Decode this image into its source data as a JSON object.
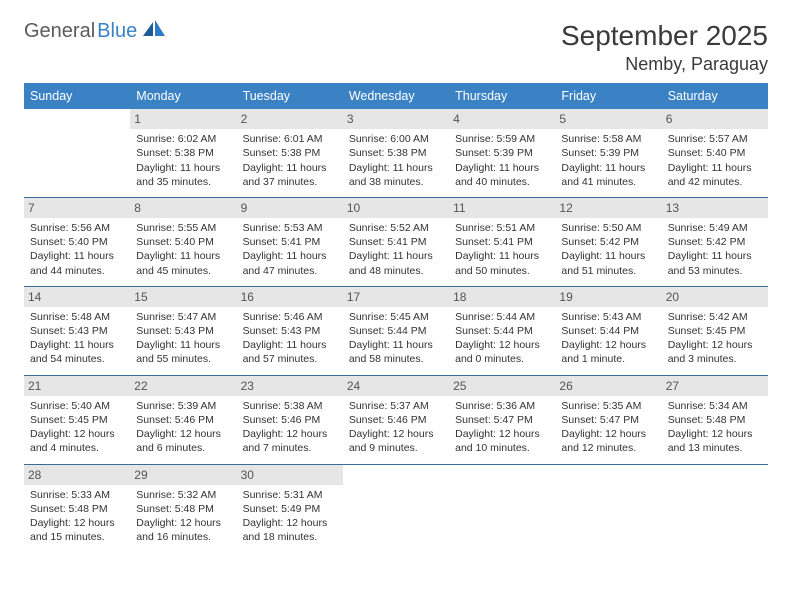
{
  "logo": {
    "text1": "General",
    "text2": "Blue"
  },
  "title": "September 2025",
  "location": "Nemby, Paraguay",
  "colors": {
    "header_bg": "#3b82c4",
    "header_text": "#ffffff",
    "daynum_bg": "#e6e6e6",
    "daynum_text": "#555555",
    "body_text": "#333333",
    "row_border": "#3b6a9a"
  },
  "weekdays": [
    "Sunday",
    "Monday",
    "Tuesday",
    "Wednesday",
    "Thursday",
    "Friday",
    "Saturday"
  ],
  "weeks": [
    [
      null,
      {
        "n": "1",
        "sr": "Sunrise: 6:02 AM",
        "ss": "Sunset: 5:38 PM",
        "d1": "Daylight: 11 hours",
        "d2": "and 35 minutes."
      },
      {
        "n": "2",
        "sr": "Sunrise: 6:01 AM",
        "ss": "Sunset: 5:38 PM",
        "d1": "Daylight: 11 hours",
        "d2": "and 37 minutes."
      },
      {
        "n": "3",
        "sr": "Sunrise: 6:00 AM",
        "ss": "Sunset: 5:38 PM",
        "d1": "Daylight: 11 hours",
        "d2": "and 38 minutes."
      },
      {
        "n": "4",
        "sr": "Sunrise: 5:59 AM",
        "ss": "Sunset: 5:39 PM",
        "d1": "Daylight: 11 hours",
        "d2": "and 40 minutes."
      },
      {
        "n": "5",
        "sr": "Sunrise: 5:58 AM",
        "ss": "Sunset: 5:39 PM",
        "d1": "Daylight: 11 hours",
        "d2": "and 41 minutes."
      },
      {
        "n": "6",
        "sr": "Sunrise: 5:57 AM",
        "ss": "Sunset: 5:40 PM",
        "d1": "Daylight: 11 hours",
        "d2": "and 42 minutes."
      }
    ],
    [
      {
        "n": "7",
        "sr": "Sunrise: 5:56 AM",
        "ss": "Sunset: 5:40 PM",
        "d1": "Daylight: 11 hours",
        "d2": "and 44 minutes."
      },
      {
        "n": "8",
        "sr": "Sunrise: 5:55 AM",
        "ss": "Sunset: 5:40 PM",
        "d1": "Daylight: 11 hours",
        "d2": "and 45 minutes."
      },
      {
        "n": "9",
        "sr": "Sunrise: 5:53 AM",
        "ss": "Sunset: 5:41 PM",
        "d1": "Daylight: 11 hours",
        "d2": "and 47 minutes."
      },
      {
        "n": "10",
        "sr": "Sunrise: 5:52 AM",
        "ss": "Sunset: 5:41 PM",
        "d1": "Daylight: 11 hours",
        "d2": "and 48 minutes."
      },
      {
        "n": "11",
        "sr": "Sunrise: 5:51 AM",
        "ss": "Sunset: 5:41 PM",
        "d1": "Daylight: 11 hours",
        "d2": "and 50 minutes."
      },
      {
        "n": "12",
        "sr": "Sunrise: 5:50 AM",
        "ss": "Sunset: 5:42 PM",
        "d1": "Daylight: 11 hours",
        "d2": "and 51 minutes."
      },
      {
        "n": "13",
        "sr": "Sunrise: 5:49 AM",
        "ss": "Sunset: 5:42 PM",
        "d1": "Daylight: 11 hours",
        "d2": "and 53 minutes."
      }
    ],
    [
      {
        "n": "14",
        "sr": "Sunrise: 5:48 AM",
        "ss": "Sunset: 5:43 PM",
        "d1": "Daylight: 11 hours",
        "d2": "and 54 minutes."
      },
      {
        "n": "15",
        "sr": "Sunrise: 5:47 AM",
        "ss": "Sunset: 5:43 PM",
        "d1": "Daylight: 11 hours",
        "d2": "and 55 minutes."
      },
      {
        "n": "16",
        "sr": "Sunrise: 5:46 AM",
        "ss": "Sunset: 5:43 PM",
        "d1": "Daylight: 11 hours",
        "d2": "and 57 minutes."
      },
      {
        "n": "17",
        "sr": "Sunrise: 5:45 AM",
        "ss": "Sunset: 5:44 PM",
        "d1": "Daylight: 11 hours",
        "d2": "and 58 minutes."
      },
      {
        "n": "18",
        "sr": "Sunrise: 5:44 AM",
        "ss": "Sunset: 5:44 PM",
        "d1": "Daylight: 12 hours",
        "d2": "and 0 minutes."
      },
      {
        "n": "19",
        "sr": "Sunrise: 5:43 AM",
        "ss": "Sunset: 5:44 PM",
        "d1": "Daylight: 12 hours",
        "d2": "and 1 minute."
      },
      {
        "n": "20",
        "sr": "Sunrise: 5:42 AM",
        "ss": "Sunset: 5:45 PM",
        "d1": "Daylight: 12 hours",
        "d2": "and 3 minutes."
      }
    ],
    [
      {
        "n": "21",
        "sr": "Sunrise: 5:40 AM",
        "ss": "Sunset: 5:45 PM",
        "d1": "Daylight: 12 hours",
        "d2": "and 4 minutes."
      },
      {
        "n": "22",
        "sr": "Sunrise: 5:39 AM",
        "ss": "Sunset: 5:46 PM",
        "d1": "Daylight: 12 hours",
        "d2": "and 6 minutes."
      },
      {
        "n": "23",
        "sr": "Sunrise: 5:38 AM",
        "ss": "Sunset: 5:46 PM",
        "d1": "Daylight: 12 hours",
        "d2": "and 7 minutes."
      },
      {
        "n": "24",
        "sr": "Sunrise: 5:37 AM",
        "ss": "Sunset: 5:46 PM",
        "d1": "Daylight: 12 hours",
        "d2": "and 9 minutes."
      },
      {
        "n": "25",
        "sr": "Sunrise: 5:36 AM",
        "ss": "Sunset: 5:47 PM",
        "d1": "Daylight: 12 hours",
        "d2": "and 10 minutes."
      },
      {
        "n": "26",
        "sr": "Sunrise: 5:35 AM",
        "ss": "Sunset: 5:47 PM",
        "d1": "Daylight: 12 hours",
        "d2": "and 12 minutes."
      },
      {
        "n": "27",
        "sr": "Sunrise: 5:34 AM",
        "ss": "Sunset: 5:48 PM",
        "d1": "Daylight: 12 hours",
        "d2": "and 13 minutes."
      }
    ],
    [
      {
        "n": "28",
        "sr": "Sunrise: 5:33 AM",
        "ss": "Sunset: 5:48 PM",
        "d1": "Daylight: 12 hours",
        "d2": "and 15 minutes."
      },
      {
        "n": "29",
        "sr": "Sunrise: 5:32 AM",
        "ss": "Sunset: 5:48 PM",
        "d1": "Daylight: 12 hours",
        "d2": "and 16 minutes."
      },
      {
        "n": "30",
        "sr": "Sunrise: 5:31 AM",
        "ss": "Sunset: 5:49 PM",
        "d1": "Daylight: 12 hours",
        "d2": "and 18 minutes."
      },
      null,
      null,
      null,
      null
    ]
  ]
}
